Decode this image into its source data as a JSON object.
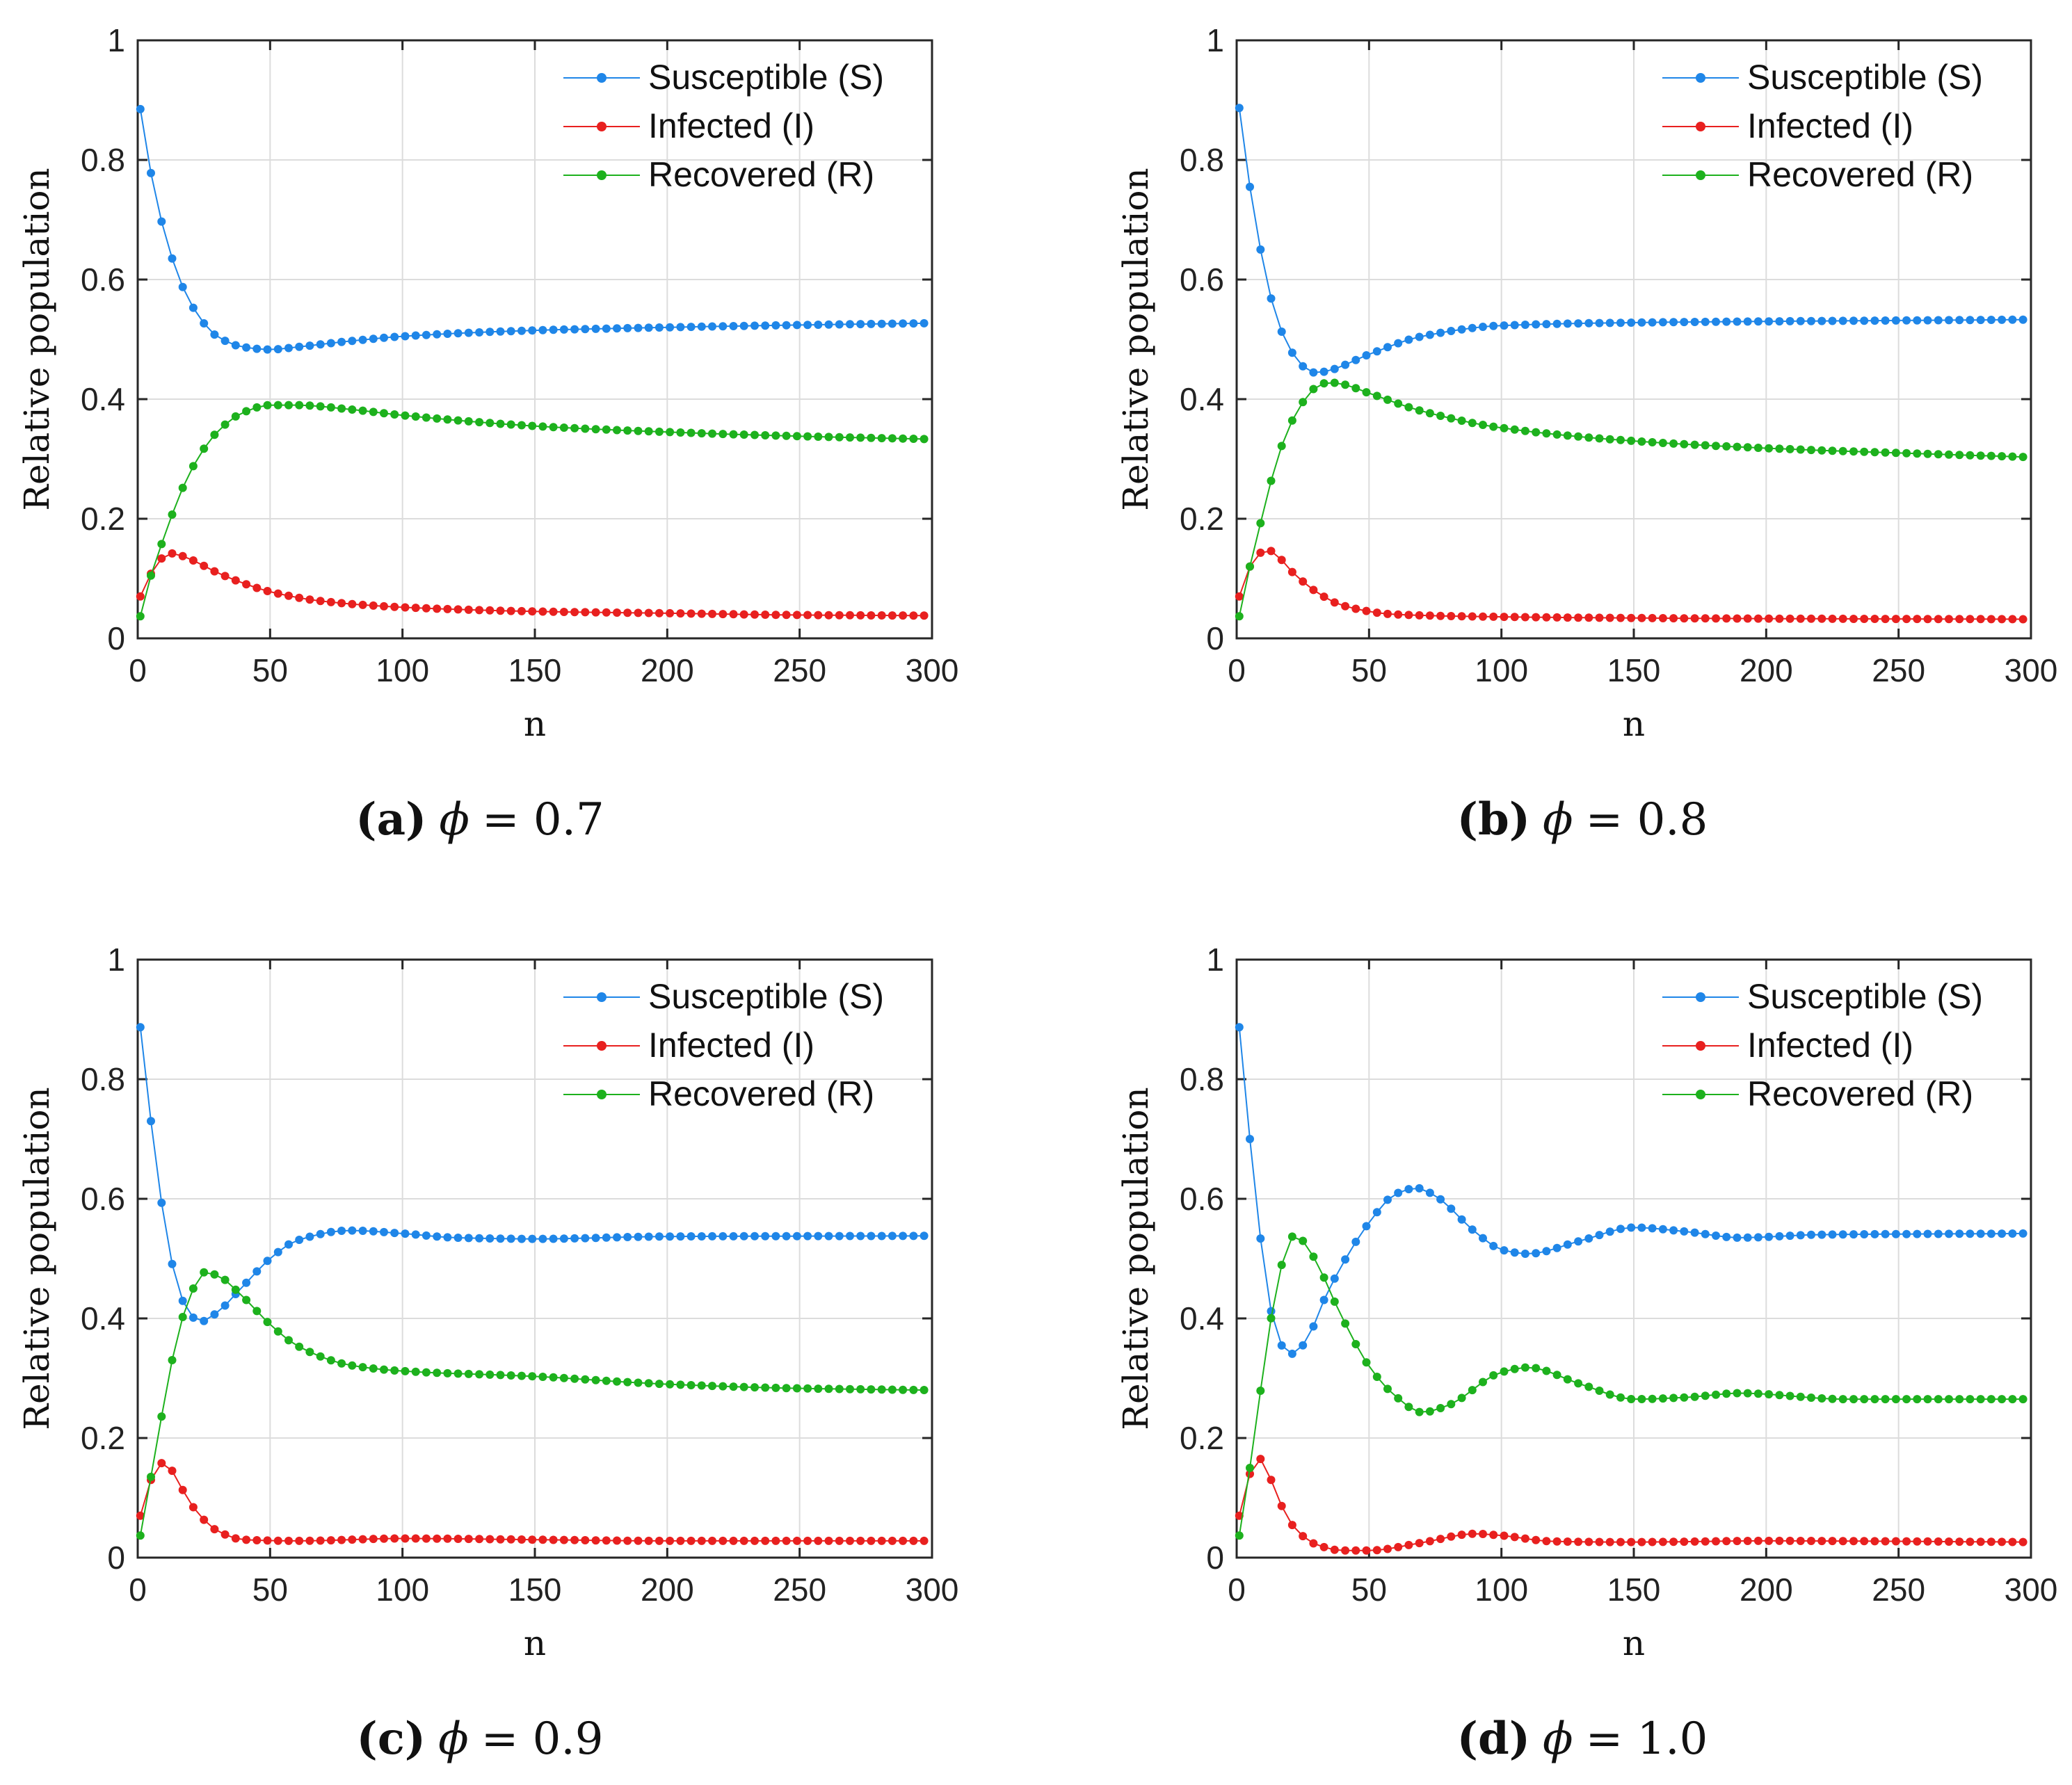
{
  "figure": {
    "series_names": [
      "Susceptible (S)",
      "Infected (I)",
      "Recovered (R)"
    ],
    "colors": {
      "S": "#1f86e8",
      "I": "#e8201f",
      "R": "#1db11d"
    }
  },
  "chart_data": [
    {
      "type": "line",
      "panel": "a",
      "caption": {
        "label": "(a)",
        "symbol": "ϕ",
        "text": "= 0.7"
      },
      "xlabel": "n",
      "ylabel": "Relative population",
      "xlim": [
        0,
        300
      ],
      "ylim": [
        0,
        1
      ],
      "xticks": [
        "0",
        "50",
        "100",
        "150",
        "200",
        "250",
        "300"
      ],
      "yticks": [
        "0",
        "0.2",
        "0.4",
        "0.6",
        "0.8",
        "1"
      ],
      "grid": true,
      "legend": "top-right",
      "key_points": {
        "S": [
          [
            1,
            0.885
          ],
          [
            5,
            0.778
          ],
          [
            10,
            0.68
          ],
          [
            15,
            0.61
          ],
          [
            20,
            0.56
          ],
          [
            30,
            0.505
          ],
          [
            40,
            0.487
          ],
          [
            50,
            0.483
          ],
          [
            60,
            0.487
          ],
          [
            80,
            0.497
          ],
          [
            100,
            0.505
          ],
          [
            150,
            0.515
          ],
          [
            200,
            0.52
          ],
          [
            250,
            0.524
          ],
          [
            300,
            0.527
          ]
        ],
        "I": [
          [
            1,
            0.07
          ],
          [
            5,
            0.108
          ],
          [
            10,
            0.137
          ],
          [
            13,
            0.142
          ],
          [
            20,
            0.132
          ],
          [
            30,
            0.11
          ],
          [
            40,
            0.092
          ],
          [
            50,
            0.078
          ],
          [
            70,
            0.062
          ],
          [
            100,
            0.052
          ],
          [
            150,
            0.045
          ],
          [
            200,
            0.042
          ],
          [
            250,
            0.039
          ],
          [
            300,
            0.038
          ]
        ],
        "R": [
          [
            1,
            0.037
          ],
          [
            5,
            0.105
          ],
          [
            10,
            0.17
          ],
          [
            15,
            0.23
          ],
          [
            20,
            0.28
          ],
          [
            30,
            0.345
          ],
          [
            40,
            0.378
          ],
          [
            50,
            0.39
          ],
          [
            60,
            0.39
          ],
          [
            80,
            0.383
          ],
          [
            100,
            0.373
          ],
          [
            150,
            0.355
          ],
          [
            200,
            0.345
          ],
          [
            250,
            0.338
          ],
          [
            300,
            0.333
          ]
        ]
      }
    },
    {
      "type": "line",
      "panel": "b",
      "caption": {
        "label": "(b)",
        "symbol": "ϕ",
        "text": "= 0.8"
      },
      "xlabel": "n",
      "ylabel": "Relative population",
      "xlim": [
        0,
        300
      ],
      "ylim": [
        0,
        1
      ],
      "xticks": [
        "0",
        "50",
        "100",
        "150",
        "200",
        "250",
        "300"
      ],
      "yticks": [
        "0",
        "0.2",
        "0.4",
        "0.6",
        "0.8",
        "1"
      ],
      "grid": true,
      "legend": "top-right",
      "key_points": {
        "S": [
          [
            1,
            0.887
          ],
          [
            5,
            0.755
          ],
          [
            10,
            0.628
          ],
          [
            15,
            0.537
          ],
          [
            20,
            0.485
          ],
          [
            25,
            0.455
          ],
          [
            30,
            0.444
          ],
          [
            35,
            0.448
          ],
          [
            50,
            0.475
          ],
          [
            70,
            0.505
          ],
          [
            100,
            0.523
          ],
          [
            150,
            0.528
          ],
          [
            200,
            0.53
          ],
          [
            300,
            0.533
          ]
        ],
        "I": [
          [
            1,
            0.07
          ],
          [
            5,
            0.12
          ],
          [
            10,
            0.145
          ],
          [
            13,
            0.146
          ],
          [
            20,
            0.115
          ],
          [
            30,
            0.078
          ],
          [
            40,
            0.055
          ],
          [
            60,
            0.04
          ],
          [
            100,
            0.036
          ],
          [
            150,
            0.034
          ],
          [
            200,
            0.033
          ],
          [
            300,
            0.032
          ]
        ],
        "R": [
          [
            1,
            0.037
          ],
          [
            5,
            0.12
          ],
          [
            10,
            0.21
          ],
          [
            15,
            0.295
          ],
          [
            20,
            0.355
          ],
          [
            25,
            0.395
          ],
          [
            30,
            0.42
          ],
          [
            35,
            0.428
          ],
          [
            40,
            0.425
          ],
          [
            50,
            0.41
          ],
          [
            70,
            0.38
          ],
          [
            100,
            0.352
          ],
          [
            150,
            0.33
          ],
          [
            200,
            0.318
          ],
          [
            250,
            0.31
          ],
          [
            300,
            0.303
          ]
        ]
      }
    },
    {
      "type": "line",
      "panel": "c",
      "caption": {
        "label": "(c)",
        "symbol": "ϕ",
        "text": "= 0.9"
      },
      "xlabel": "n",
      "ylabel": "Relative population",
      "xlim": [
        0,
        300
      ],
      "ylim": [
        0,
        1
      ],
      "xticks": [
        "0",
        "50",
        "100",
        "150",
        "200",
        "250",
        "300"
      ],
      "yticks": [
        "0",
        "0.2",
        "0.4",
        "0.6",
        "0.8",
        "1"
      ],
      "grid": true,
      "legend": "top-right",
      "key_points": {
        "S": [
          [
            1,
            0.887
          ],
          [
            5,
            0.73
          ],
          [
            10,
            0.565
          ],
          [
            15,
            0.455
          ],
          [
            20,
            0.405
          ],
          [
            24,
            0.395
          ],
          [
            30,
            0.41
          ],
          [
            40,
            0.455
          ],
          [
            50,
            0.5
          ],
          [
            60,
            0.53
          ],
          [
            80,
            0.547
          ],
          [
            100,
            0.542
          ],
          [
            120,
            0.535
          ],
          [
            150,
            0.533
          ],
          [
            200,
            0.537
          ],
          [
            300,
            0.538
          ]
        ],
        "I": [
          [
            1,
            0.07
          ],
          [
            5,
            0.13
          ],
          [
            9,
            0.158
          ],
          [
            12,
            0.15
          ],
          [
            20,
            0.09
          ],
          [
            30,
            0.045
          ],
          [
            40,
            0.03
          ],
          [
            60,
            0.028
          ],
          [
            100,
            0.032
          ],
          [
            150,
            0.03
          ],
          [
            200,
            0.028
          ],
          [
            300,
            0.028
          ]
        ],
        "R": [
          [
            1,
            0.037
          ],
          [
            5,
            0.135
          ],
          [
            10,
            0.26
          ],
          [
            15,
            0.37
          ],
          [
            20,
            0.44
          ],
          [
            25,
            0.477
          ],
          [
            30,
            0.472
          ],
          [
            40,
            0.435
          ],
          [
            50,
            0.39
          ],
          [
            60,
            0.355
          ],
          [
            80,
            0.322
          ],
          [
            100,
            0.312
          ],
          [
            150,
            0.303
          ],
          [
            200,
            0.29
          ],
          [
            250,
            0.283
          ],
          [
            300,
            0.28
          ]
        ]
      }
    },
    {
      "type": "line",
      "panel": "d",
      "caption": {
        "label": "(d)",
        "symbol": "ϕ",
        "text": "= 1.0"
      },
      "xlabel": "n",
      "ylabel": "Relative population",
      "xlim": [
        0,
        300
      ],
      "ylim": [
        0,
        1
      ],
      "xticks": [
        "0",
        "50",
        "100",
        "150",
        "200",
        "250",
        "300"
      ],
      "yticks": [
        "0",
        "0.2",
        "0.4",
        "0.6",
        "0.8",
        "1"
      ],
      "grid": true,
      "legend": "top-right",
      "key_points": {
        "S": [
          [
            1,
            0.887
          ],
          [
            5,
            0.7
          ],
          [
            10,
            0.5
          ],
          [
            15,
            0.375
          ],
          [
            20,
            0.34
          ],
          [
            25,
            0.355
          ],
          [
            35,
            0.45
          ],
          [
            50,
            0.56
          ],
          [
            60,
            0.608
          ],
          [
            68,
            0.618
          ],
          [
            75,
            0.605
          ],
          [
            90,
            0.545
          ],
          [
            100,
            0.515
          ],
          [
            110,
            0.508
          ],
          [
            130,
            0.53
          ],
          [
            150,
            0.552
          ],
          [
            170,
            0.545
          ],
          [
            190,
            0.535
          ],
          [
            220,
            0.54
          ],
          [
            300,
            0.542
          ]
        ],
        "I": [
          [
            1,
            0.07
          ],
          [
            5,
            0.14
          ],
          [
            9,
            0.165
          ],
          [
            13,
            0.13
          ],
          [
            20,
            0.06
          ],
          [
            30,
            0.022
          ],
          [
            40,
            0.012
          ],
          [
            50,
            0.012
          ],
          [
            70,
            0.025
          ],
          [
            90,
            0.04
          ],
          [
            100,
            0.037
          ],
          [
            120,
            0.027
          ],
          [
            150,
            0.026
          ],
          [
            200,
            0.028
          ],
          [
            300,
            0.026
          ]
        ],
        "R": [
          [
            1,
            0.037
          ],
          [
            5,
            0.15
          ],
          [
            10,
            0.31
          ],
          [
            15,
            0.45
          ],
          [
            20,
            0.53
          ],
          [
            22,
            0.54
          ],
          [
            28,
            0.51
          ],
          [
            40,
            0.4
          ],
          [
            50,
            0.32
          ],
          [
            60,
            0.27
          ],
          [
            70,
            0.243
          ],
          [
            80,
            0.255
          ],
          [
            100,
            0.31
          ],
          [
            110,
            0.318
          ],
          [
            130,
            0.29
          ],
          [
            150,
            0.265
          ],
          [
            170,
            0.268
          ],
          [
            190,
            0.275
          ],
          [
            230,
            0.265
          ],
          [
            300,
            0.265
          ]
        ]
      }
    }
  ]
}
